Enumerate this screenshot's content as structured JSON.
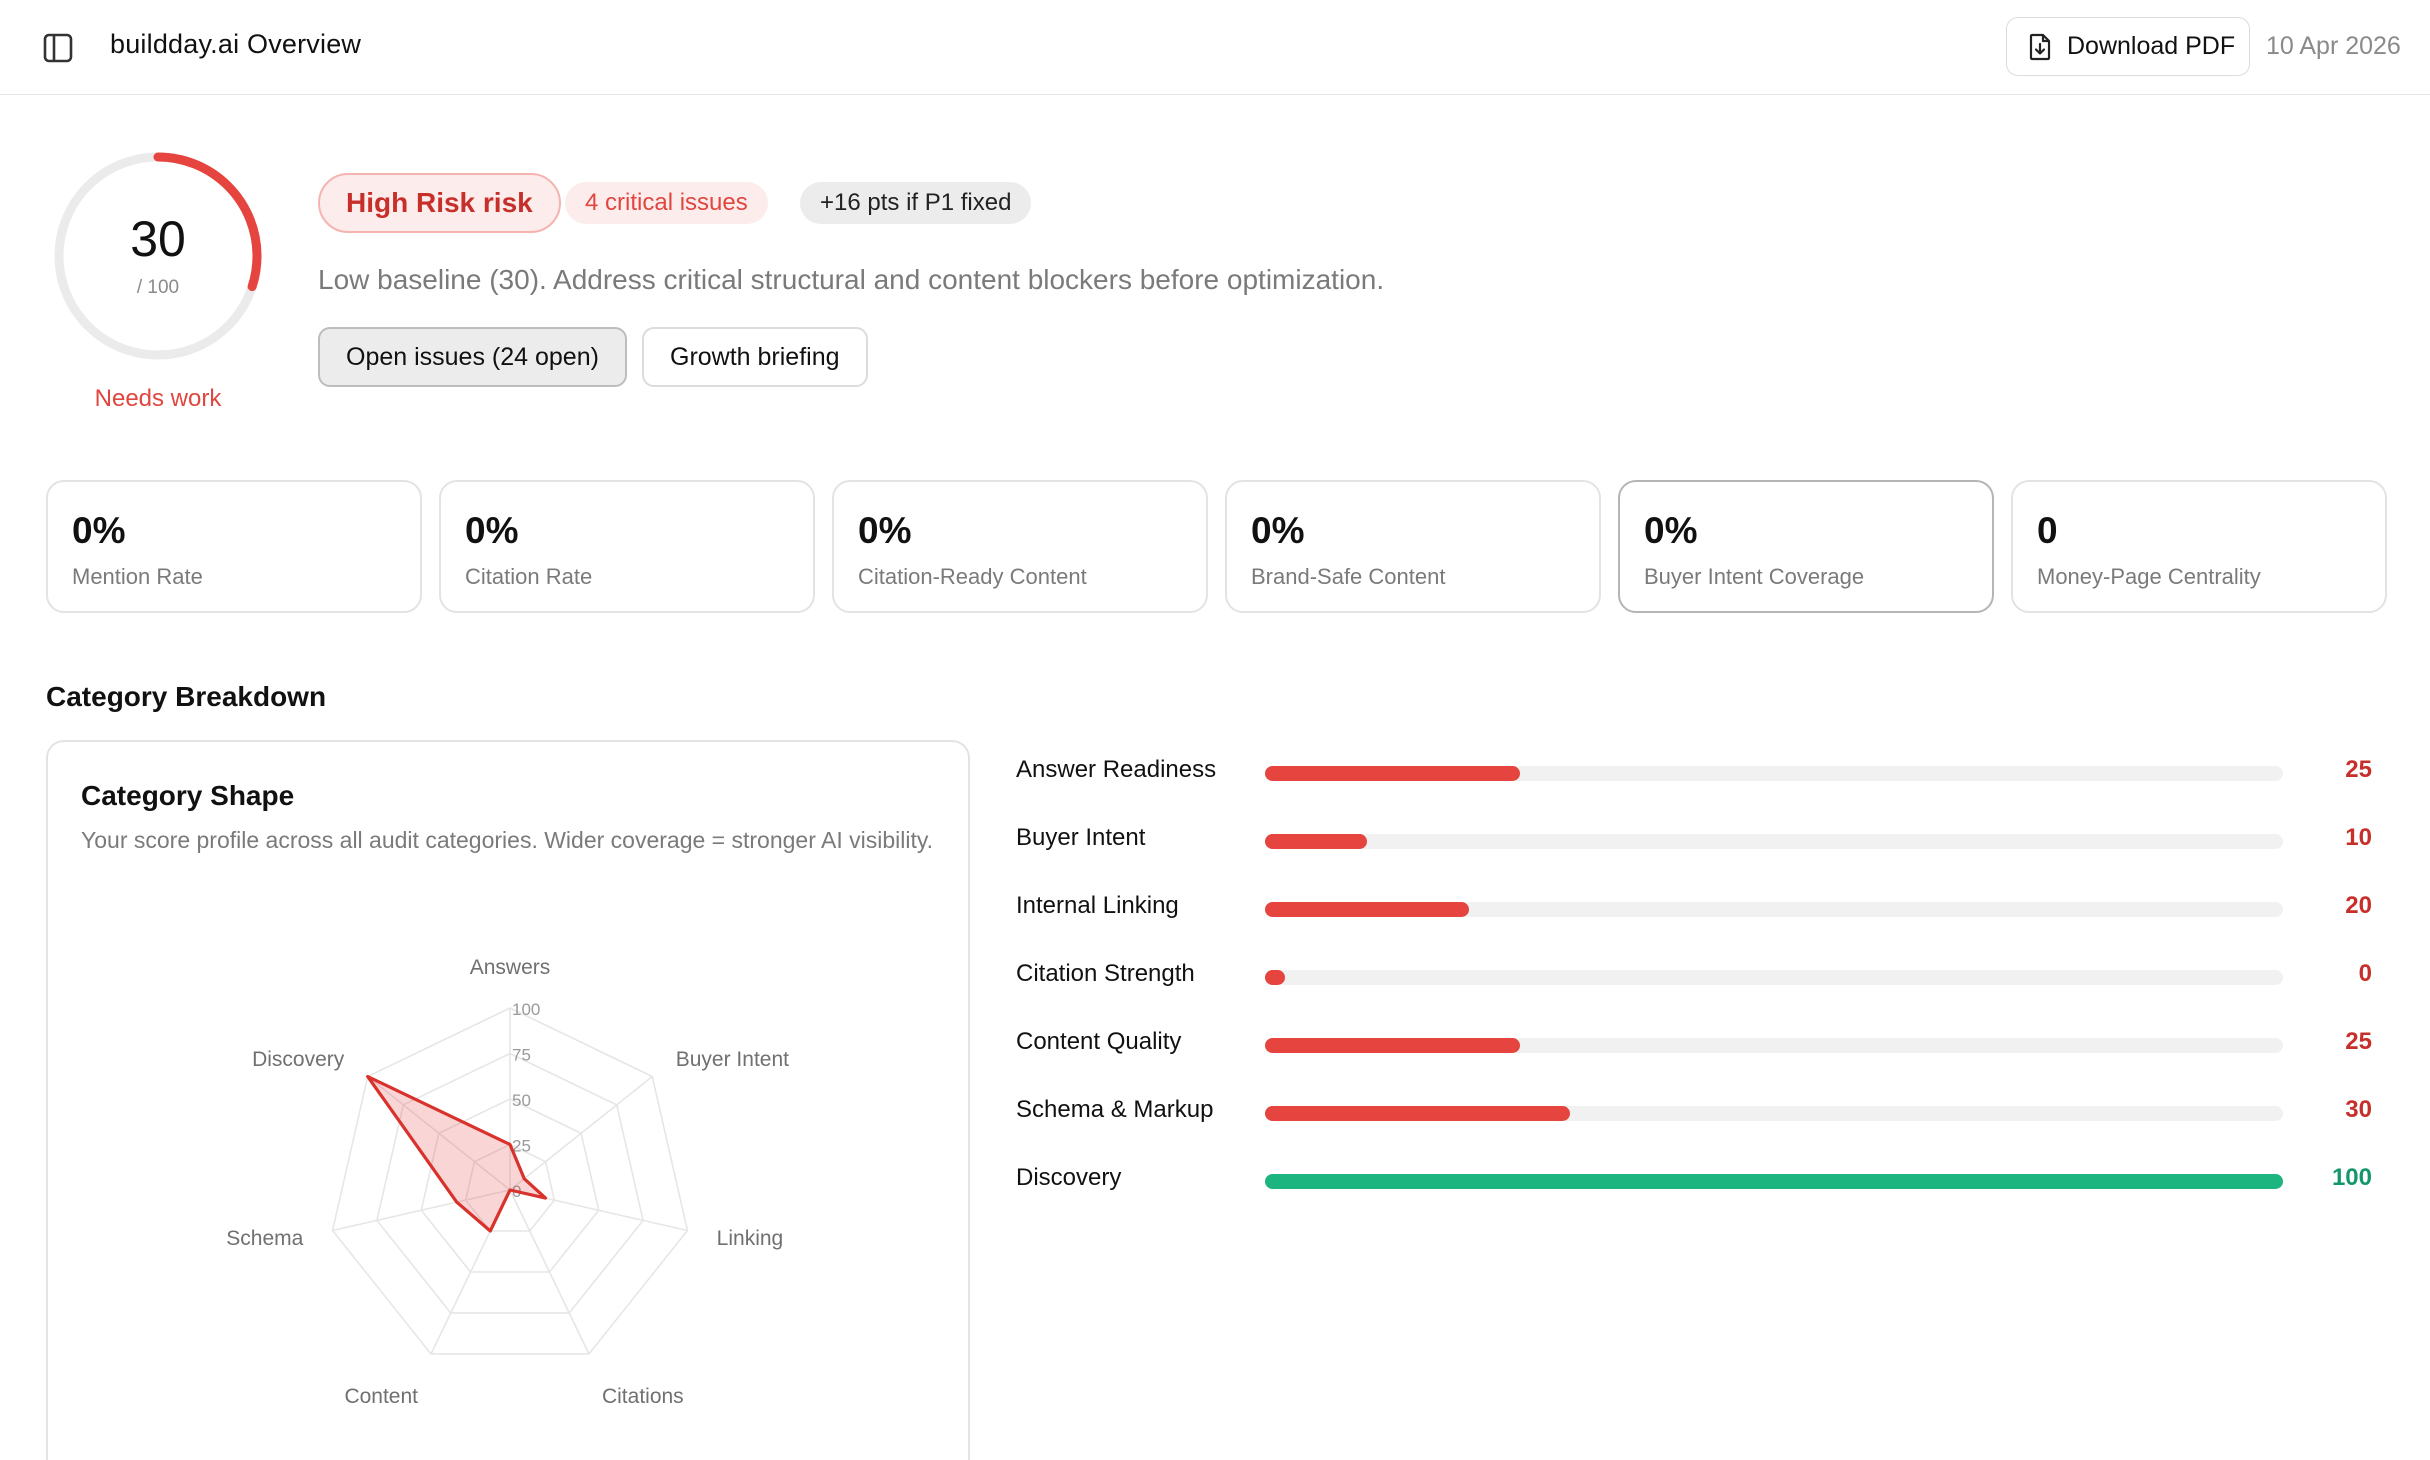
{
  "header": {
    "title": "buildday.ai Overview",
    "download_label": "Download PDF",
    "date": "10 Apr 2026"
  },
  "score": {
    "value": 30,
    "value_text": "30",
    "max_text": "/ 100",
    "status": "Needs work"
  },
  "badges": {
    "risk": "High Risk risk",
    "critical": "4 critical issues",
    "points": "+16 pts if P1 fixed"
  },
  "summary": "Low baseline (30). Address critical structural and content blockers before optimization.",
  "actions": {
    "open_issues": "Open issues (24 open)",
    "growth": "Growth briefing"
  },
  "metrics": [
    {
      "value": "0%",
      "label": "Mention Rate"
    },
    {
      "value": "0%",
      "label": "Citation Rate"
    },
    {
      "value": "0%",
      "label": "Citation-Ready Content"
    },
    {
      "value": "0%",
      "label": "Brand-Safe Content"
    },
    {
      "value": "0%",
      "label": "Buyer Intent Coverage"
    },
    {
      "value": "0",
      "label": "Money-Page Centrality"
    }
  ],
  "section_title": "Category Breakdown",
  "shape_card": {
    "title": "Category Shape",
    "description": "Your score profile across all audit categories. Wider coverage = stronger AI visibility."
  },
  "chart_data": {
    "type": "radar",
    "categories": [
      "Answers",
      "Buyer Intent",
      "Linking",
      "Citations",
      "Content",
      "Schema",
      "Discovery"
    ],
    "values": [
      25,
      10,
      20,
      0,
      25,
      30,
      100
    ],
    "ticks": [
      "0",
      "25",
      "50",
      "75",
      "100"
    ],
    "rlim": [
      0,
      100
    ]
  },
  "categories": [
    {
      "label": "Answer Readiness",
      "value": 25,
      "value_text": "25"
    },
    {
      "label": "Buyer Intent",
      "value": 10,
      "value_text": "10"
    },
    {
      "label": "Internal Linking",
      "value": 20,
      "value_text": "20"
    },
    {
      "label": "Citation Strength",
      "value": 0,
      "value_text": "0"
    },
    {
      "label": "Content Quality",
      "value": 25,
      "value_text": "25"
    },
    {
      "label": "Schema & Markup",
      "value": 30,
      "value_text": "30"
    },
    {
      "label": "Discovery",
      "value": 100,
      "value_text": "100"
    }
  ],
  "colors": {
    "danger": "#e5443f",
    "danger_text": "#c7302a",
    "success": "#1db57f",
    "success_text": "#16976b",
    "track": "#f1f1f1"
  }
}
